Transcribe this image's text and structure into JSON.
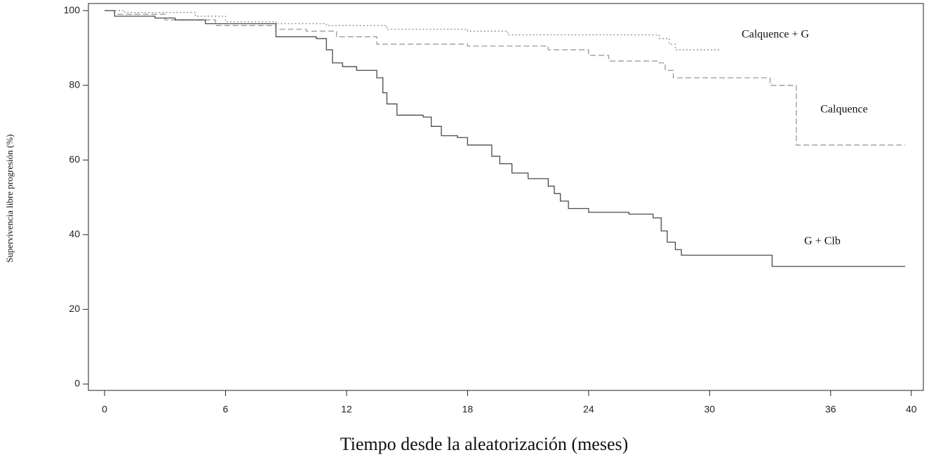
{
  "chart_data": {
    "type": "step",
    "x_label": "Tiempo desde la aleatorización (meses)",
    "y_label": "Supervivencia libre progresión (%)",
    "xlim": [
      -0.8,
      40.6
    ],
    "ylim": [
      -1.7,
      101.9
    ],
    "xticks": [
      0,
      6,
      12,
      18,
      24,
      30,
      36,
      40
    ],
    "yticks": [
      0,
      20,
      40,
      60,
      80,
      100
    ],
    "series": [
      {
        "name": "Calquence + G",
        "color": "#8a8a8a",
        "style": "dotted",
        "x": [
          0,
          1,
          4.5,
          6,
          8.5,
          11,
          14,
          18,
          20,
          27.5,
          28,
          28.3,
          30.5
        ],
        "values": [
          100,
          99.5,
          98.5,
          97,
          96.5,
          96,
          95,
          94.5,
          93.5,
          92.5,
          91,
          89.5,
          89.5
        ]
      },
      {
        "name": "Calquence",
        "color": "#9a9a9a",
        "style": "dashed",
        "x": [
          0,
          0.5,
          3,
          5.5,
          8.5,
          10,
          11.5,
          13.5,
          18,
          22,
          24,
          25,
          27.5,
          27.8,
          28.2,
          33,
          34.3,
          39.7
        ],
        "values": [
          100,
          99,
          97.5,
          96,
          95,
          94.5,
          93,
          91,
          90.5,
          89.5,
          88,
          86.5,
          86,
          84,
          82,
          80,
          64,
          64
        ]
      },
      {
        "name": "G + Clb",
        "color": "#4a4a4a",
        "style": "solid",
        "x": [
          0,
          0.5,
          2.5,
          3.5,
          5,
          8.5,
          10.5,
          11,
          11.3,
          11.8,
          12.5,
          13.5,
          13.8,
          14,
          14.5,
          15.8,
          16.2,
          16.7,
          17.5,
          18,
          19.2,
          19.6,
          20.2,
          21,
          22,
          22.3,
          22.6,
          23,
          24,
          26,
          27.2,
          27.6,
          27.9,
          28.3,
          28.6,
          33.1,
          39.7
        ],
        "values": [
          100,
          98.5,
          98,
          97.5,
          96.5,
          93,
          92.5,
          89.5,
          86,
          85,
          84,
          82,
          78,
          75,
          72,
          71.5,
          69,
          66.5,
          66,
          64,
          61,
          59,
          56.5,
          55,
          53,
          51,
          49,
          47,
          46,
          45.5,
          44.5,
          41,
          38,
          36,
          34.5,
          31.5,
          31.5
        ]
      }
    ]
  }
}
